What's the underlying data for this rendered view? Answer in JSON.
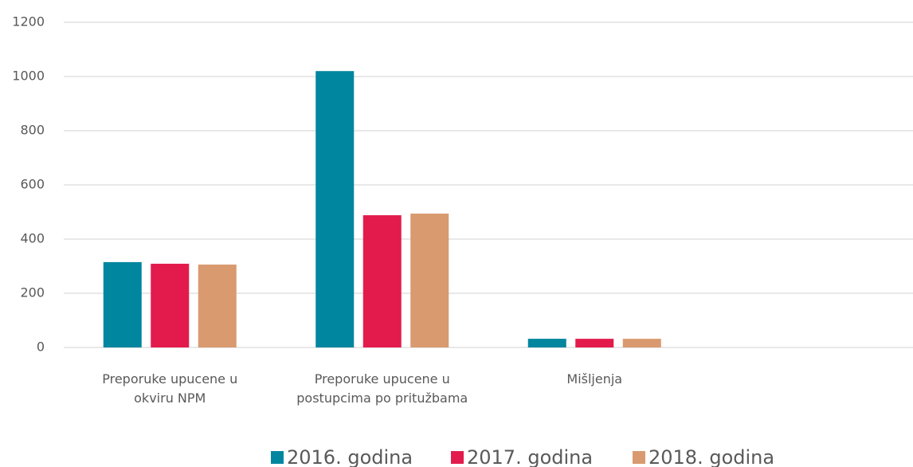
{
  "chart_data": {
    "type": "bar",
    "categories": [
      "Preporuke upucene u\nokviru NPM",
      "Preporuke upucene u\npostupcima po pritužbama",
      "Mišljenja",
      null
    ],
    "series": [
      {
        "name": "2016. godina",
        "color": "#00869e",
        "values": [
          315,
          1020,
          32,
          null
        ]
      },
      {
        "name": "2017. godina",
        "color": "#e31b4c",
        "values": [
          309,
          488,
          32,
          null
        ]
      },
      {
        "name": "2018. godina",
        "color": "#d99a6f",
        "values": [
          306,
          494,
          32,
          null
        ]
      }
    ],
    "ylim": [
      0,
      1200
    ],
    "yticks": [
      0,
      200,
      400,
      600,
      800,
      1000,
      1200
    ],
    "grid": true,
    "legend": "bottom"
  }
}
